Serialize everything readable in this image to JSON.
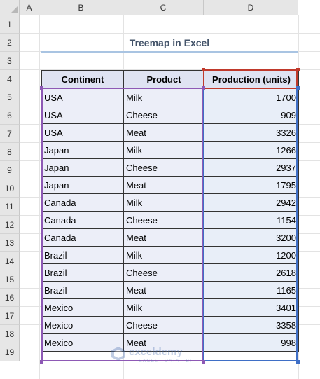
{
  "columns": [
    "A",
    "B",
    "C",
    "D"
  ],
  "rows": [
    "1",
    "2",
    "3",
    "4",
    "5",
    "6",
    "7",
    "8",
    "9",
    "10",
    "11",
    "12",
    "13",
    "14",
    "15",
    "16",
    "17",
    "18",
    "19"
  ],
  "title": "Treemap in Excel",
  "table": {
    "headers": [
      "Continent",
      "Product",
      "Production (units)"
    ],
    "rows": [
      [
        "USA",
        "Milk",
        "1700"
      ],
      [
        "USA",
        "Cheese",
        "909"
      ],
      [
        "USA",
        "Meat",
        "3326"
      ],
      [
        "Japan",
        "Milk",
        "1266"
      ],
      [
        "Japan",
        "Cheese",
        "2937"
      ],
      [
        "Japan",
        "Meat",
        "1795"
      ],
      [
        "Canada",
        "Milk",
        "2942"
      ],
      [
        "Canada",
        "Cheese",
        "1154"
      ],
      [
        "Canada",
        "Meat",
        "3200"
      ],
      [
        "Brazil",
        "Milk",
        "1200"
      ],
      [
        "Brazil",
        "Cheese",
        "2618"
      ],
      [
        "Brazil",
        "Meat",
        "1165"
      ],
      [
        "Mexico",
        "Milk",
        "3401"
      ],
      [
        "Mexico",
        "Cheese",
        "3358"
      ],
      [
        "Mexico",
        "Meat",
        "998"
      ]
    ]
  },
  "watermark": {
    "name": "exceldemy",
    "tagline": "EXCEL · DATA · BI"
  },
  "colors": {
    "selection_purple": "#8e59b5",
    "selection_blue": "#3f6fc6",
    "selection_red": "#c0392b",
    "header_fill": "#dfe3f2",
    "cell_fill": "#eceef8"
  }
}
